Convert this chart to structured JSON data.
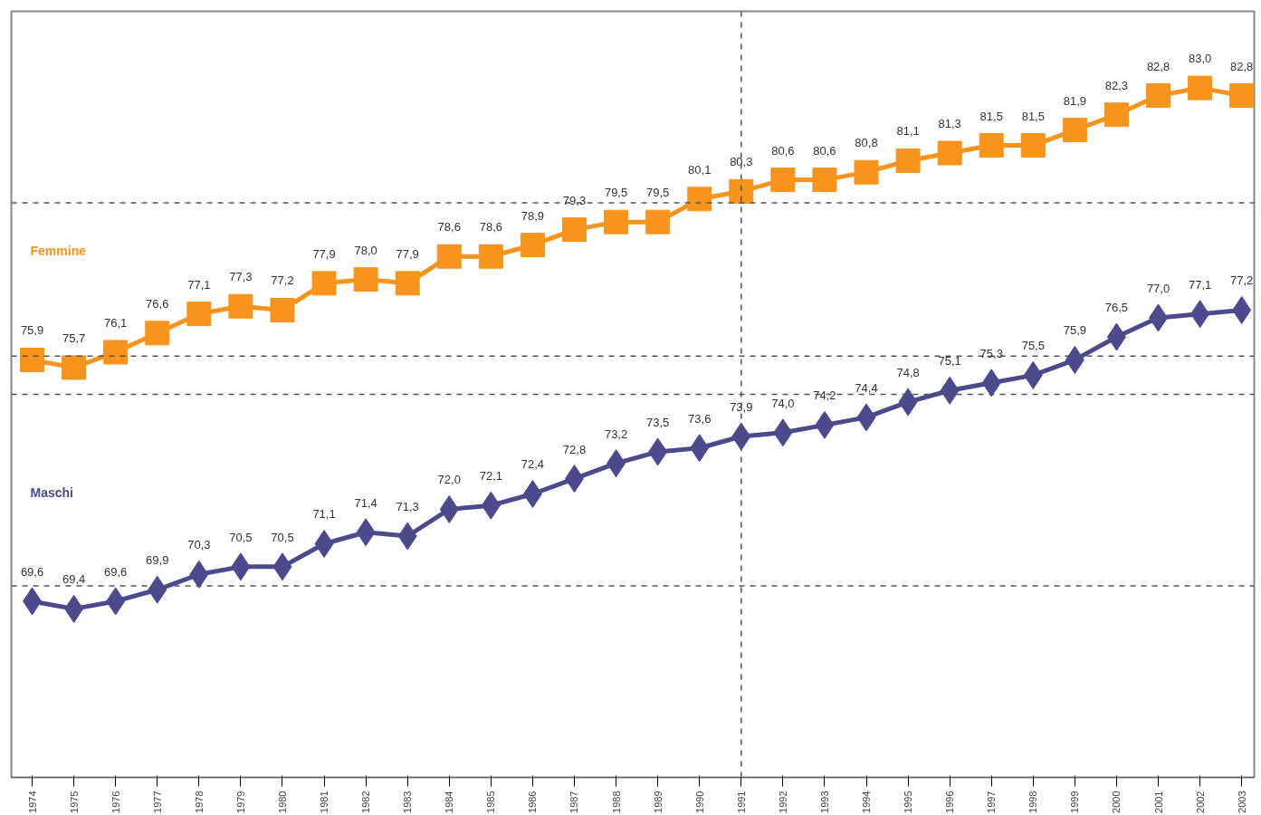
{
  "chart_data": {
    "type": "line",
    "categories": [
      "1974",
      "1975",
      "1976",
      "1977",
      "1978",
      "1979",
      "1980",
      "1981",
      "1982",
      "1983",
      "1984",
      "1985",
      "1986",
      "1987",
      "1988",
      "1989",
      "1990",
      "1991",
      "1992",
      "1993",
      "1994",
      "1995",
      "1996",
      "1997",
      "1998",
      "1999",
      "2000",
      "2001",
      "2002",
      "2003"
    ],
    "series": [
      {
        "name": "Femmine",
        "color": "#f7941d",
        "marker": "square",
        "values": [
          75.9,
          75.7,
          76.1,
          76.6,
          77.1,
          77.3,
          77.2,
          77.9,
          78.0,
          77.9,
          78.6,
          78.6,
          78.9,
          79.3,
          79.5,
          79.5,
          80.1,
          80.3,
          80.6,
          80.6,
          80.8,
          81.1,
          81.3,
          81.5,
          81.5,
          81.9,
          82.3,
          82.8,
          83.0,
          82.8
        ],
        "value_labels": [
          "75,9",
          "75,7",
          "76,1",
          "76,6",
          "77,1",
          "77,3",
          "77,2",
          "77,9",
          "78,0",
          "77,9",
          "78,6",
          "78,6",
          "78,9",
          "79,3",
          "79,5",
          "79,5",
          "80,1",
          "80,3",
          "80,6",
          "80,6",
          "80,8",
          "81,1",
          "81,3",
          "81,5",
          "81,5",
          "81,9",
          "82,3",
          "82,8",
          "83,0",
          "82,8"
        ]
      },
      {
        "name": "Maschi",
        "color": "#4b4a8c",
        "marker": "diamond",
        "values": [
          69.6,
          69.4,
          69.6,
          69.9,
          70.3,
          70.5,
          70.5,
          71.1,
          71.4,
          71.3,
          72.0,
          72.1,
          72.4,
          72.8,
          73.2,
          73.5,
          73.6,
          73.9,
          74.0,
          74.2,
          74.4,
          74.8,
          75.1,
          75.3,
          75.5,
          75.9,
          76.5,
          77.0,
          77.1,
          77.2
        ],
        "value_labels": [
          "69,6",
          "69,4",
          "69,6",
          "69,9",
          "70,3",
          "70,5",
          "70,5",
          "71,1",
          "71,4",
          "71,3",
          "72,0",
          "72,1",
          "72,4",
          "72,8",
          "73,2",
          "73,5",
          "73,6",
          "73,9",
          "74,0",
          "74,2",
          "74,4",
          "74,8",
          "75,1",
          "75,3",
          "75,5",
          "75,9",
          "76,5",
          "77,0",
          "77,1",
          "77,2"
        ]
      }
    ],
    "ylim": [
      65,
      85
    ],
    "tick_labels": "x",
    "grid": false,
    "line_style": "solid",
    "ref_lines": [
      {
        "axis": "y",
        "value": 70,
        "line_style": "dashed",
        "color": "#555555"
      },
      {
        "axis": "y",
        "value": 75,
        "line_style": "dashed",
        "color": "#555555"
      },
      {
        "axis": "y",
        "value": 76,
        "line_style": "dashed",
        "color": "#555555"
      },
      {
        "axis": "y",
        "value": 80,
        "line_style": "dashed",
        "color": "#555555"
      },
      {
        "axis": "x",
        "value": "1991",
        "line_style": "dashed",
        "color": "#555555"
      }
    ]
  }
}
